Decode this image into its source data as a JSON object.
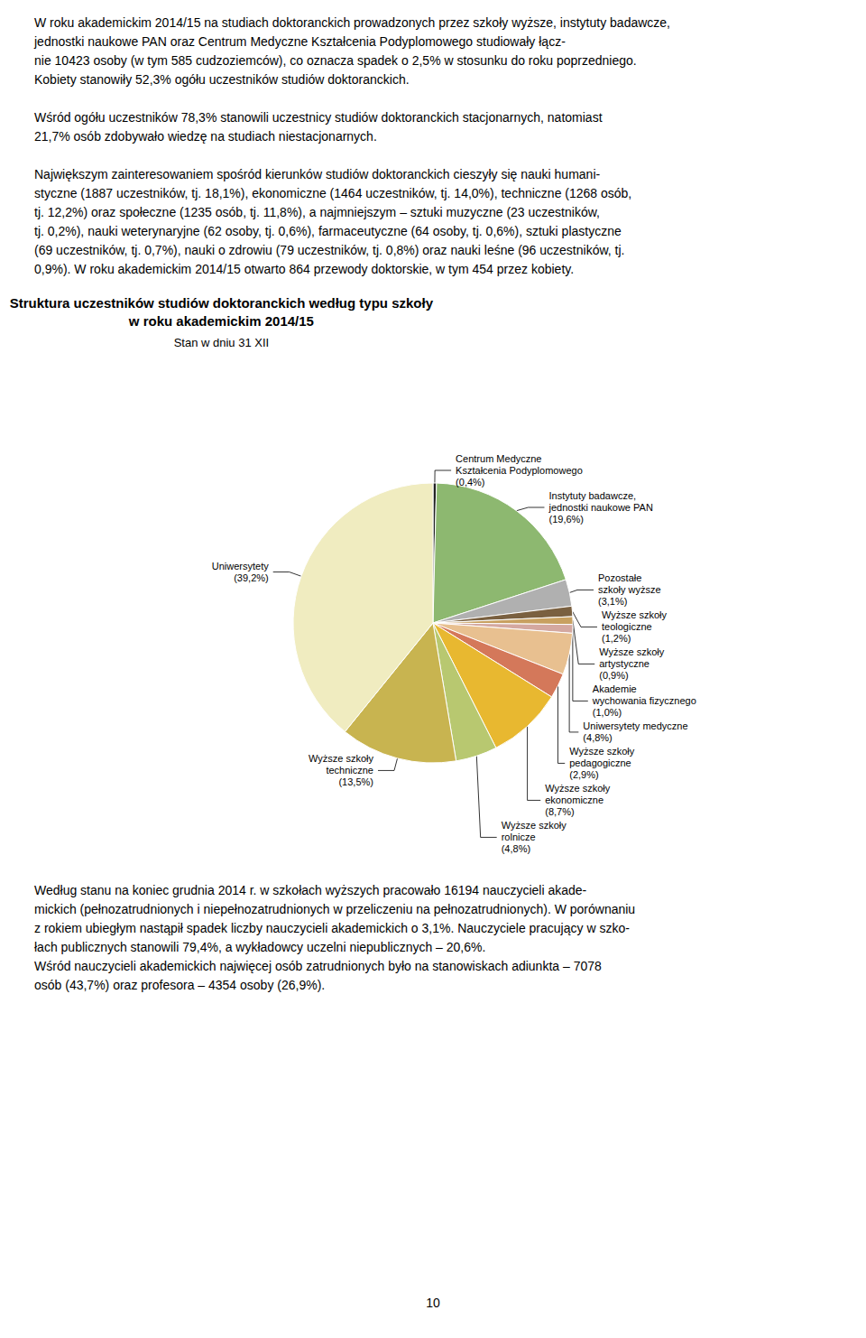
{
  "chart_data": {
    "type": "pie",
    "title": "Struktura uczestników studiów doktoranckich według typu szkoły\nw roku akademickim 2014/15",
    "subtitle": "Stan w dniu 31 XII",
    "categories": [
      "Centrum Medyczne\nKształcenia Podyplomowego\n(0,4%)",
      "Instytuty badawcze,\njednostki naukowe PAN\n(19,6%)",
      "Pozostałe\nszkoły wyższe\n(3,1%)",
      "Wyższe szkoły\nteologiczne\n(1,2%)",
      "Wyższe szkoły\nartystyczne\n(0,9%)",
      "Akademie\nwychowania fizycznego\n(1,0%)",
      "Uniwersytety medyczne\n(4,8%)",
      "Wyższe szkoły\npedagogiczne\n(2,9%)",
      "Wyższe szkoły\nekonomiczne\n(8,7%)",
      "Wyższe szkoły\nrolnicze\n(4,8%)",
      "Wyższe szkoły\ntechniczne\n(13,5%)",
      "Uniwersytety\n(39,2%)"
    ],
    "values": [
      0.4,
      19.6,
      3.1,
      1.2,
      0.9,
      1.0,
      4.8,
      2.9,
      8.7,
      4.8,
      13.5,
      39.2
    ],
    "colors": [
      "#222222",
      "#8db870",
      "#b0b0b0",
      "#7a6040",
      "#c8a060",
      "#d4a8a0",
      "#e8c090",
      "#d4785a",
      "#e8b830",
      "#b8c870",
      "#c8b450",
      "#f0ecc0"
    ],
    "annotations": [
      "W roku akademickim 2014/15 na studiach doktoranckich prowadzonych przez szkoły wyższe, instytuty badawcze,\njednostki naukowe PAN oraz Centrum Medyczne Kształcenia Podyplomowego studiowały łącz-\nnie 10423 osoby (w tym 585 cudzoziemców), co oznacza spadek o 2,5% w stosunku do roku poprzedniego.\nKobiety stanowiły 52,3% ogółu uczestników studiów doktoranckich.\n\nWśród ogółu uczestników 78,3% stanowili uczestnicy studiów doktoranckich stacjonarnych, natomiast\n21,7% osób zdobywało wiedzę na studiach niestacjonarnych.\n\nNajwiększym zainteresowaniem spośród kierunków studiów doktoranckich cieszyły się nauki humani-\nstyczne (1887 uczestników, tj. 18,1%), ekonomiczne (1464 uczestników, tj. 14,0%), techniczne (1268 osób,\ntj. 12,2%) oraz społeczne (1235 osób, tj. 11,8%), a najmniejszym – sztuki muzyczne (23 uczestników,\ntj. 0,2%), nauki weterynaryjne (62 osoby, tj. 0,6%), farmaceutyczne (64 osoby, tj. 0,6%), sztuki plastyczne\n(69 uczestników, tj. 0,7%), nauki o zdrowiu (79 uczestników, tj. 0,8%) oraz nauki leśne (96 uczestników, tj.\n0,9%). W roku akademickim 2014/15 otwarto 864 przewody doktorskie, w tym 454 przez kobiety.",
      "Według stanu na koniec grudnia 2014 r. w szkołach wyższych pracowało 16194 nauczycieli akade-\nmickich (pełnozatrudnionych i niepełnozatrudnionych w przeliczeniu na pełnozatrudnionych). W porównaniu\nz rokiem ubiegłym nastąpił spadek liczby nauczycieli akademickich o 3,1%. Nauczyciele pracujący w szko-\nłach publicznych stanowili 79,4%, a wykładowcy uczelni niepublicznych – 20,6%.\nWśród nauczycieli akademickich najwięcej osób zatrudnionych było na stanowiskach adiunkta – 7078\nosób (43,7%) oraz profesora – 4354 osoby (26,9%).",
      "10"
    ]
  }
}
